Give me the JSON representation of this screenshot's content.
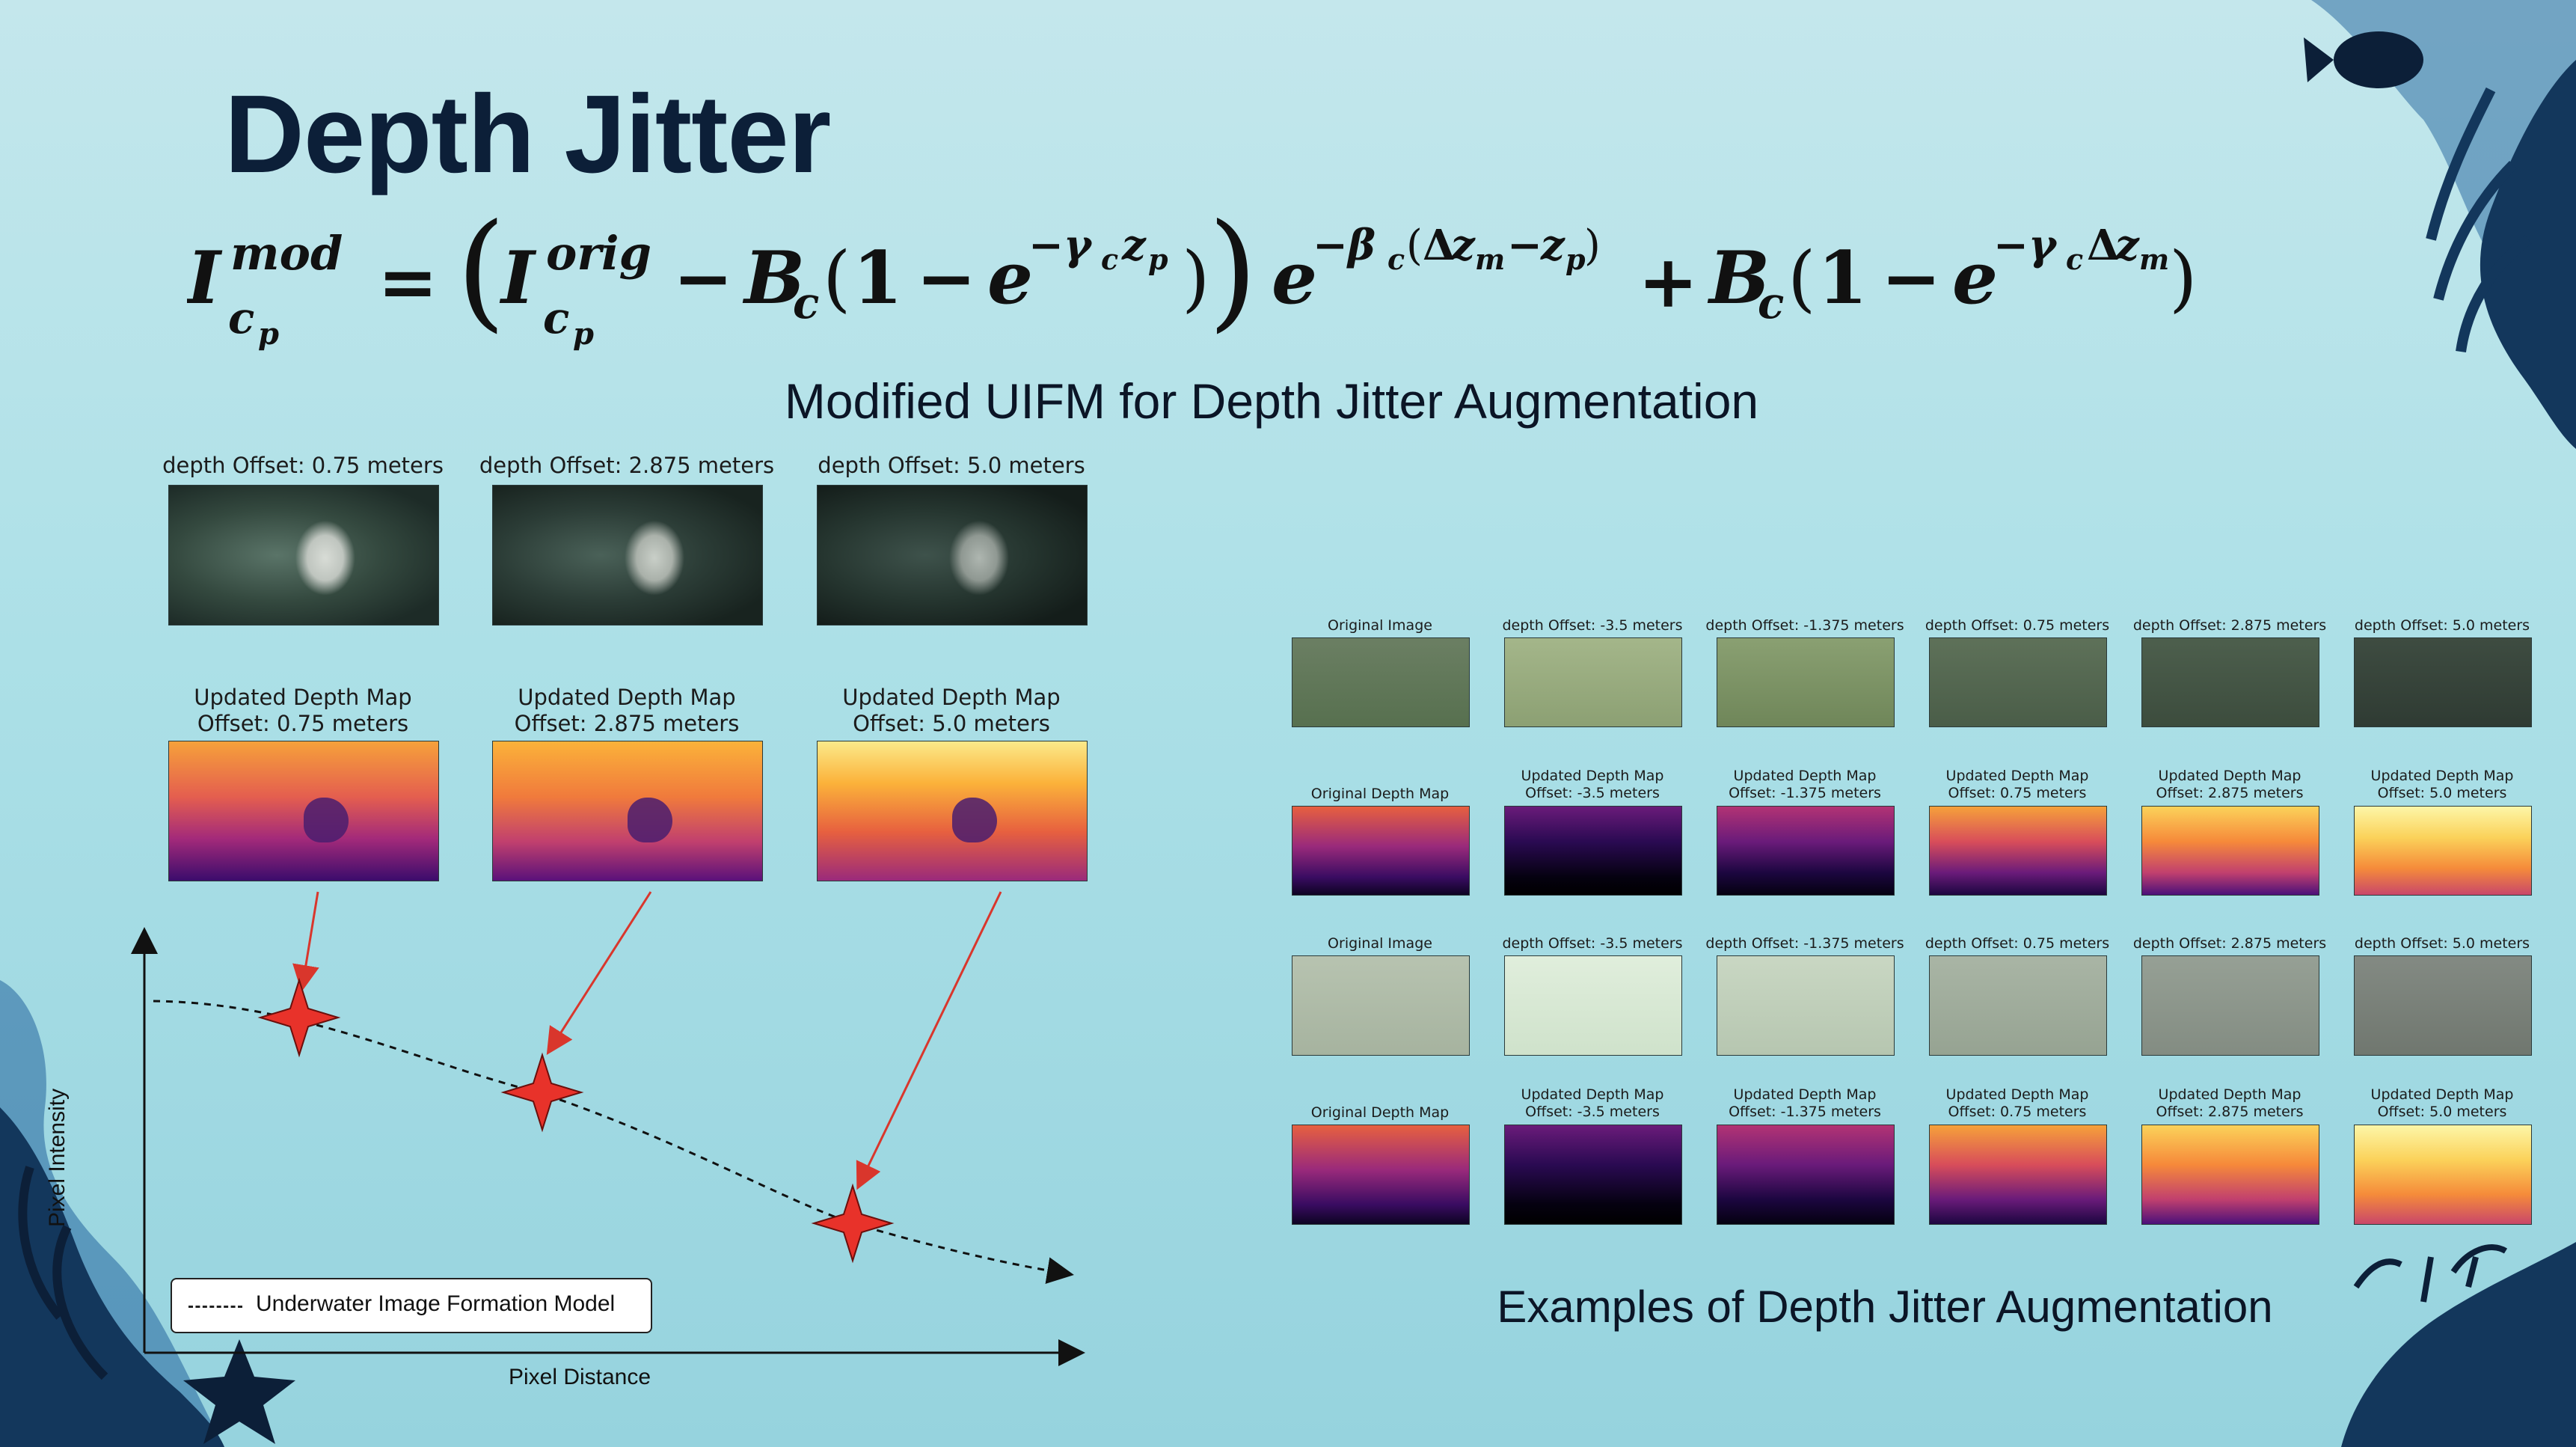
{
  "slide": {
    "title": "Depth Jitter",
    "equation": {
      "lhs_base": "I",
      "lhs_sup": "mod",
      "lhs_sub": "c",
      "orig_sup": "orig",
      "minus": "−",
      "B": "B",
      "c": "c",
      "p": "p",
      "one": "1",
      "e": "e",
      "plus": "+",
      "exp1": "−γ",
      "exp1_sub": "c",
      "z": "z",
      "exp2": "−β",
      "delta": "Δ",
      "m": "m"
    },
    "equation_caption": "Modified UIFM for Depth Jitter Augmentation",
    "examples_caption": "Examples of Depth Jitter Augmentation"
  },
  "left_panels": {
    "image_titles": [
      "depth Offset: 0.75 meters",
      "depth Offset: 2.875 meters",
      "depth Offset: 5.0 meters"
    ],
    "map_titles": [
      "Updated Depth Map\nOffset: 0.75 meters",
      "Updated Depth Map\nOffset: 2.875 meters",
      "Updated Depth Map\nOffset: 5.0 meters"
    ]
  },
  "plot": {
    "xlabel": "Pixel Distance",
    "ylabel": "Pixel Intensity",
    "legend": "Underwater Image Formation Model"
  },
  "grid": {
    "image_titles": [
      "Original Image",
      "depth Offset: -3.5 meters",
      "depth Offset: -1.375 meters",
      "depth Offset: 0.75 meters",
      "depth Offset: 2.875 meters",
      "depth Offset: 5.0 meters"
    ],
    "map_titles": [
      "Original Depth Map",
      "Updated Depth Map\nOffset: -3.5 meters",
      "Updated Depth Map\nOffset: -1.375 meters",
      "Updated Depth Map\nOffset: 0.75 meters",
      "Updated Depth Map\nOffset: 2.875 meters",
      "Updated Depth Map\nOffset: 5.0 meters"
    ]
  },
  "colors": {
    "title": "#0c1f38",
    "marker": "#e8322a",
    "arrow": "#d9362c",
    "coral": "#13375c",
    "coral_light": "#2f6ea3"
  }
}
